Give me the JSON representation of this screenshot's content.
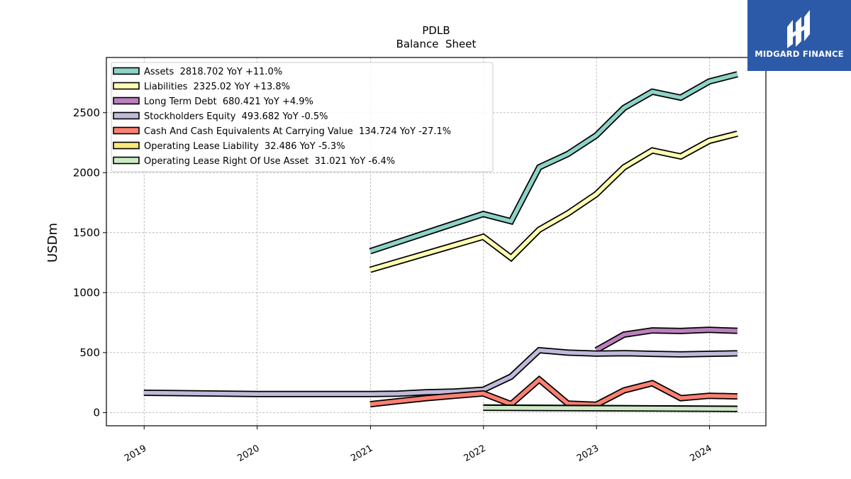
{
  "brand": {
    "name": "MIDGARD FINANCE"
  },
  "chart_data": {
    "type": "line",
    "title": "PDLB",
    "subtitle": "Balance  Sheet",
    "xlabel": "",
    "ylabel": "USDm",
    "xlim": [
      "2018-09-01",
      "2024-07-01"
    ],
    "ylim": [
      -110,
      2960
    ],
    "x_ticks": [
      "2019",
      "2020",
      "2021",
      "2022",
      "2023",
      "2024"
    ],
    "y_ticks": [
      0,
      500,
      1000,
      1500,
      2000,
      2500
    ],
    "grid": true,
    "legend_position": "top-left",
    "series": [
      {
        "name": "Assets  2818.702 YoY +11.0%",
        "color": "#8dd3c7",
        "x": [
          "2020-12-31",
          "2021-12-31",
          "2022-03-31",
          "2022-06-30",
          "2022-09-30",
          "2022-12-31",
          "2023-03-31",
          "2023-06-30",
          "2023-09-30",
          "2023-12-31",
          "2024-03-31"
        ],
        "y": [
          1345,
          1655,
          1595,
          2045,
          2155,
          2310,
          2540,
          2675,
          2625,
          2760,
          2820
        ]
      },
      {
        "name": "Liabilities  2325.02 YoY +13.8%",
        "color": "#ffffb3",
        "x": [
          "2020-12-31",
          "2021-12-31",
          "2022-03-31",
          "2022-06-30",
          "2022-09-30",
          "2022-12-31",
          "2023-03-31",
          "2023-06-30",
          "2023-09-30",
          "2023-12-31",
          "2024-03-31"
        ],
        "y": [
          1190,
          1465,
          1290,
          1525,
          1660,
          1820,
          2045,
          2185,
          2135,
          2265,
          2325
        ]
      },
      {
        "name": "Long Term Debt  680.421 YoY +4.9%",
        "color": "#bc80bd",
        "x": [
          "2022-12-31",
          "2023-03-31",
          "2023-06-30",
          "2023-09-30",
          "2023-12-31",
          "2024-03-31"
        ],
        "y": [
          520,
          650,
          685,
          680,
          690,
          682
        ]
      },
      {
        "name": "Stockholders Equity  493.682 YoY -0.5%",
        "color": "#bebada",
        "x": [
          "2018-12-31",
          "2019-12-31",
          "2020-12-31",
          "2021-03-31",
          "2021-06-30",
          "2021-09-30",
          "2021-12-31",
          "2022-03-31",
          "2022-06-30",
          "2022-09-30",
          "2022-12-31",
          "2023-03-31",
          "2023-06-30",
          "2023-09-30",
          "2023-12-31",
          "2024-03-31"
        ],
        "y": [
          165,
          155,
          155,
          158,
          170,
          175,
          190,
          300,
          520,
          500,
          492,
          495,
          490,
          485,
          490,
          494
        ]
      },
      {
        "name": "Cash And Cash Equivalents At Carrying Value  134.724 YoY -27.1%",
        "color": "#fb8072",
        "x": [
          "2020-12-31",
          "2021-03-31",
          "2021-06-30",
          "2021-09-30",
          "2021-12-31",
          "2022-03-31",
          "2022-06-30",
          "2022-09-30",
          "2022-12-31",
          "2023-03-31",
          "2023-06-30",
          "2023-09-30",
          "2023-12-31",
          "2024-03-31"
        ],
        "y": [
          70,
          95,
          120,
          140,
          160,
          70,
          275,
          75,
          65,
          185,
          245,
          120,
          140,
          135
        ]
      },
      {
        "name": "Operating Lease Liability  32.486 YoY -5.3%",
        "color": "#f9e87a",
        "x": [
          "2021-12-31",
          "2024-03-31"
        ],
        "y": [
          42,
          32
        ]
      },
      {
        "name": "Operating Lease Right Of Use Asset  31.021 YoY -6.4%",
        "color": "#ccebc5",
        "x": [
          "2021-12-31",
          "2024-03-31"
        ],
        "y": [
          40,
          31
        ]
      }
    ]
  }
}
